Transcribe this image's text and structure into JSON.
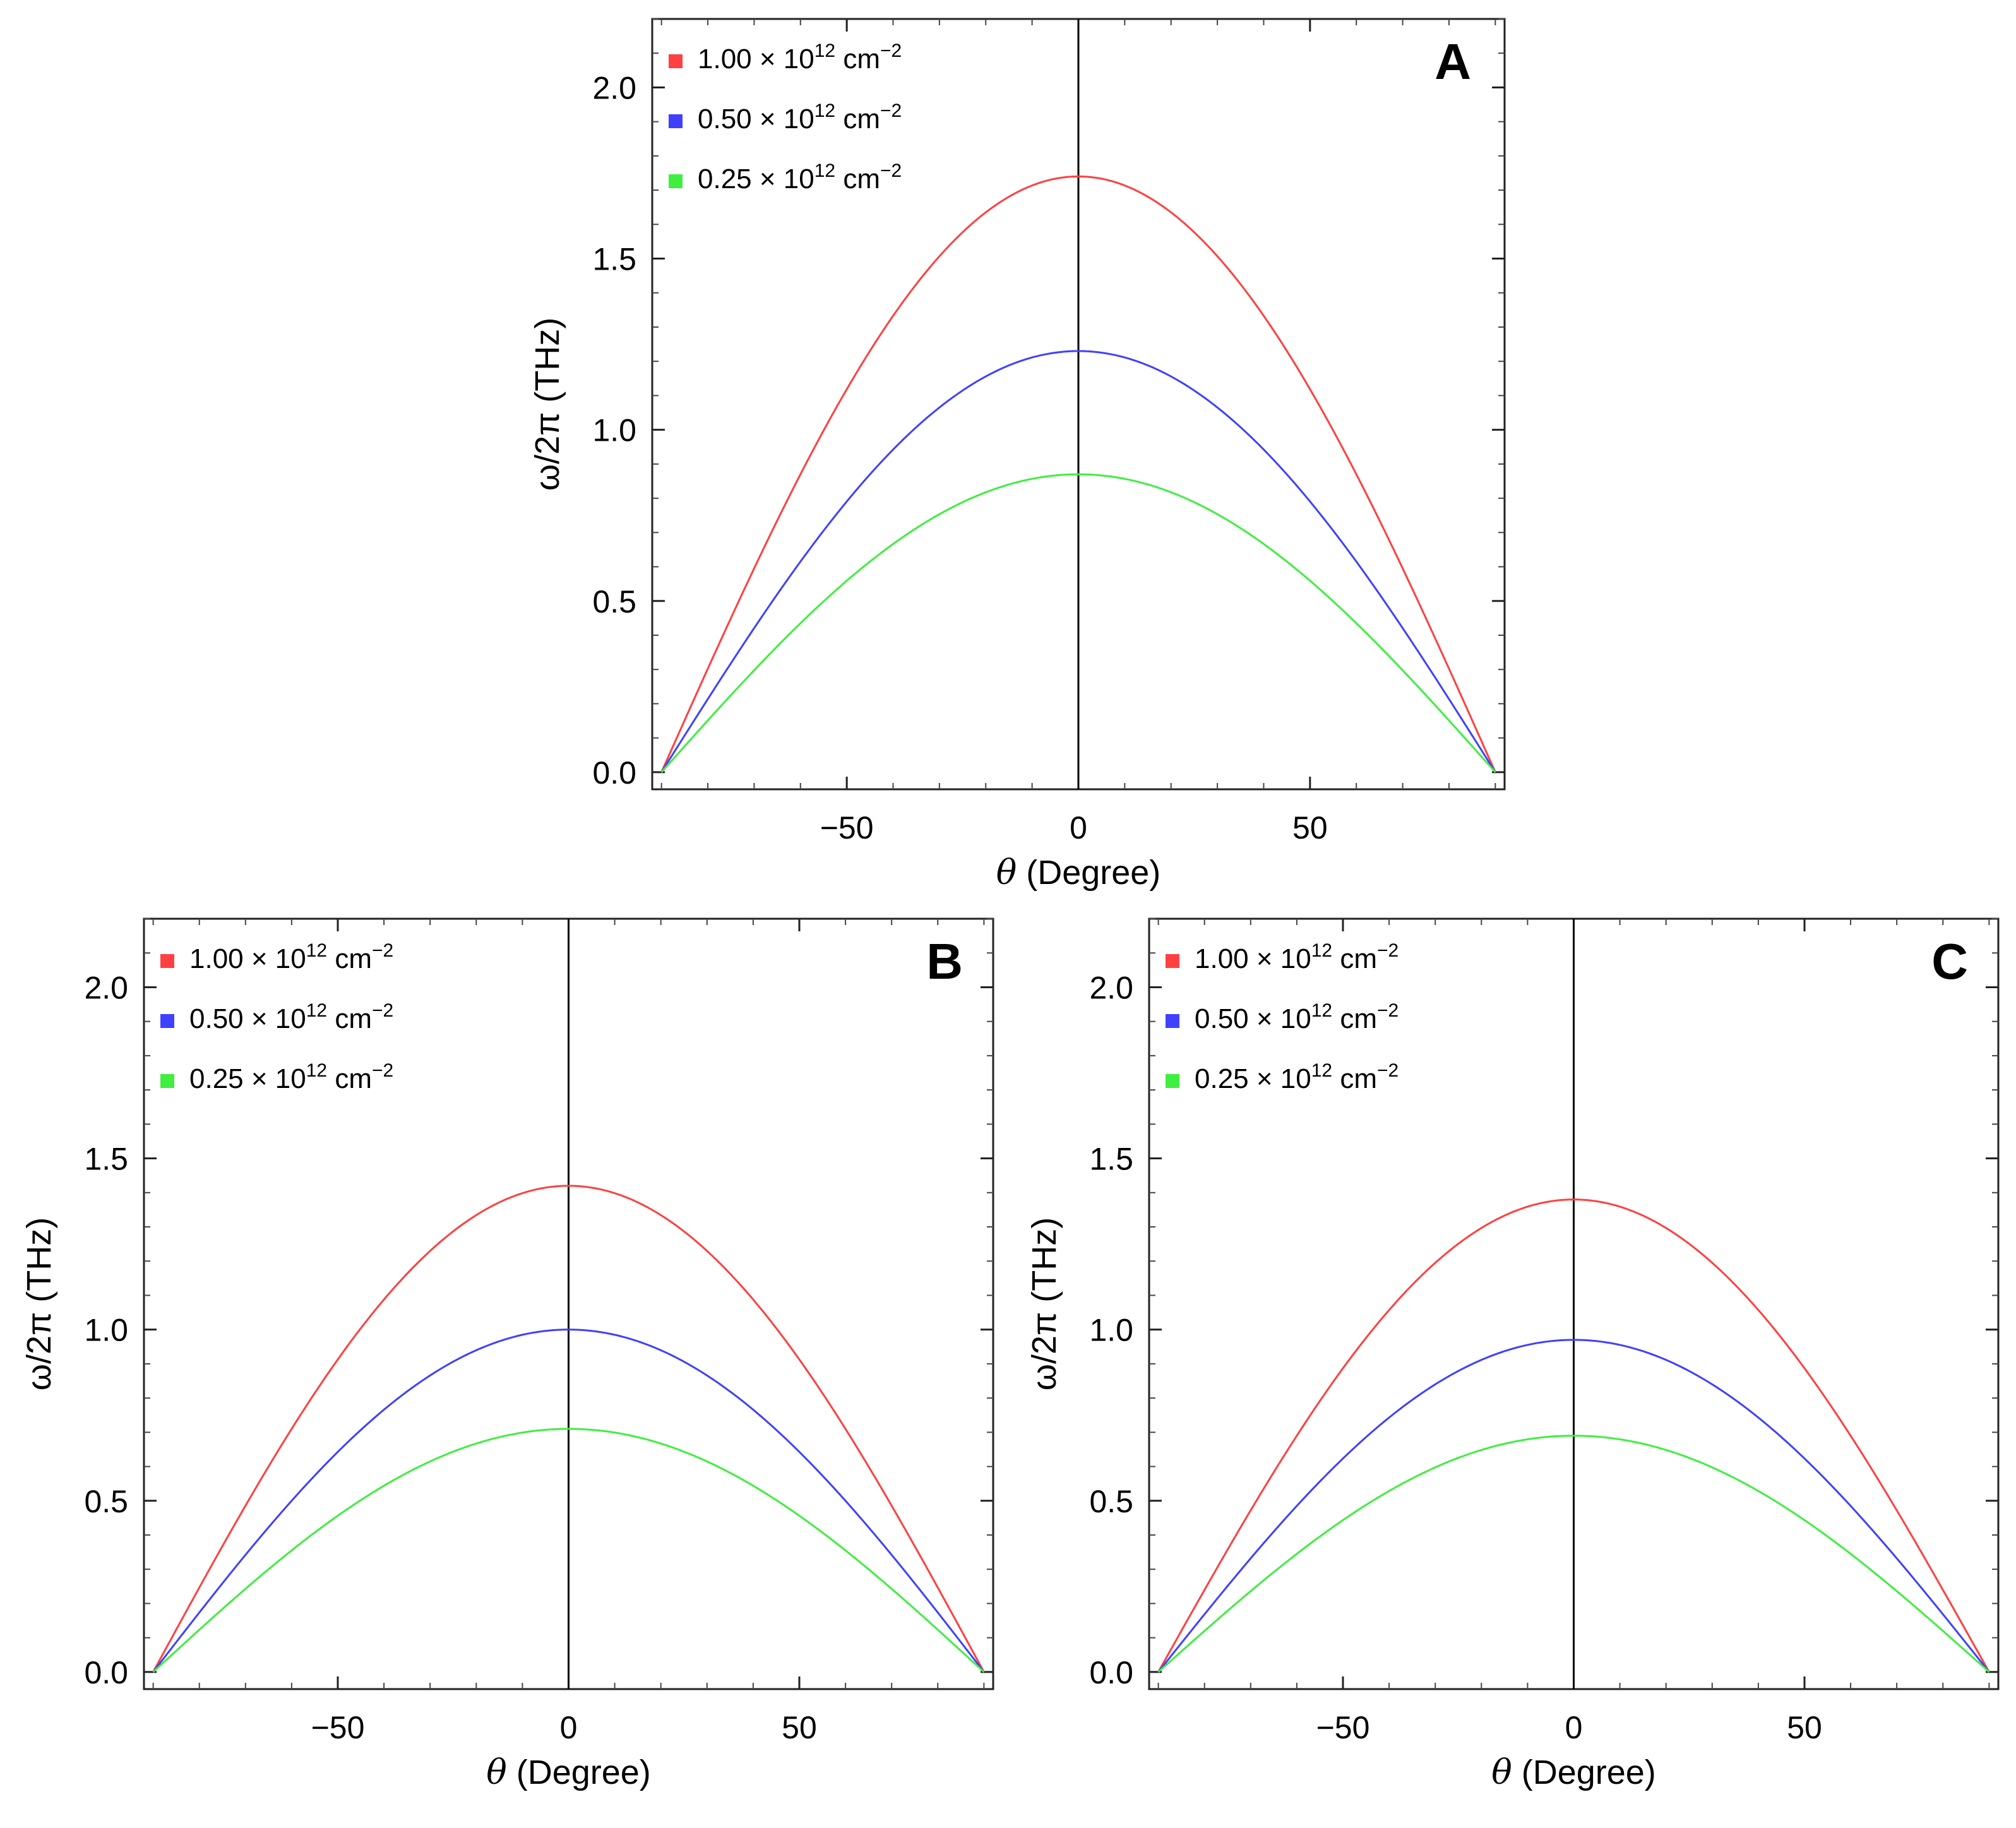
{
  "chart_data": [
    {
      "type": "line",
      "panel": "A",
      "xlabel_symbol": "θ",
      "xlabel": "(Degree)",
      "ylabel": "ω/2π (THz)",
      "xlim": [
        -92,
        92
      ],
      "ylim": [
        -0.05,
        2.2
      ],
      "xticks": [
        -50,
        0,
        50
      ],
      "xtick_labels": [
        "−50",
        "0",
        "50"
      ],
      "yticks": [
        0.0,
        0.5,
        1.0,
        1.5,
        2.0
      ],
      "ytick_labels": [
        "0.0",
        "0.5",
        "1.0",
        "1.5",
        "2.0"
      ],
      "series": [
        {
          "name": "1.00 × 10¹² cm⁻²",
          "mantissa": "1.00",
          "times": "×",
          "base": "10",
          "exp": "12",
          "unit": "cm",
          "unit_exp": "−2",
          "color": "#ff4040",
          "peak": 1.74
        },
        {
          "name": "0.50 × 10¹² cm⁻²",
          "mantissa": "0.50",
          "times": "×",
          "base": "10",
          "exp": "12",
          "unit": "cm",
          "unit_exp": "−2",
          "color": "#4040ff",
          "peak": 1.23
        },
        {
          "name": "0.25× 10¹² cm⁻²",
          "mantissa": "0.25",
          "times": "×",
          "base": "10",
          "exp": "12",
          "unit": "cm",
          "unit_exp": "−2",
          "color": "#40ee40",
          "peak": 0.87
        }
      ]
    },
    {
      "type": "line",
      "panel": "B",
      "xlabel_symbol": "θ",
      "xlabel": "(Degree)",
      "ylabel": "ω/2π (THz)",
      "xlim": [
        -92,
        92
      ],
      "ylim": [
        -0.05,
        2.2
      ],
      "xticks": [
        -50,
        0,
        50
      ],
      "xtick_labels": [
        "−50",
        "0",
        "50"
      ],
      "yticks": [
        0.0,
        0.5,
        1.0,
        1.5,
        2.0
      ],
      "ytick_labels": [
        "0.0",
        "0.5",
        "1.0",
        "1.5",
        "2.0"
      ],
      "series": [
        {
          "name": "1.00 × 10¹² cm⁻²",
          "mantissa": "1.00",
          "times": "×",
          "base": "10",
          "exp": "12",
          "unit": "cm",
          "unit_exp": "−2",
          "color": "#ff4040",
          "peak": 1.42
        },
        {
          "name": "0.50 × 10¹² cm⁻²",
          "mantissa": "0.50",
          "times": "×",
          "base": "10",
          "exp": "12",
          "unit": "cm",
          "unit_exp": "−2",
          "color": "#4040ff",
          "peak": 1.0
        },
        {
          "name": "0.25× 10¹² cm⁻²",
          "mantissa": "0.25",
          "times": "×",
          "base": "10",
          "exp": "12",
          "unit": "cm",
          "unit_exp": "−2",
          "color": "#40ee40",
          "peak": 0.71
        }
      ]
    },
    {
      "type": "line",
      "panel": "C",
      "xlabel_symbol": "θ",
      "xlabel": "(Degree)",
      "ylabel": "ω/2π (THz)",
      "xlim": [
        -92,
        92
      ],
      "ylim": [
        -0.05,
        2.2
      ],
      "xticks": [
        -50,
        0,
        50
      ],
      "xtick_labels": [
        "−50",
        "0",
        "50"
      ],
      "yticks": [
        0.0,
        0.5,
        1.0,
        1.5,
        2.0
      ],
      "ytick_labels": [
        "0.0",
        "0.5",
        "1.0",
        "1.5",
        "2.0"
      ],
      "series": [
        {
          "name": "1.00 × 10¹² cm⁻²",
          "mantissa": "1.00",
          "times": "×",
          "base": "10",
          "exp": "12",
          "unit": "cm",
          "unit_exp": "−2",
          "color": "#ff4040",
          "peak": 1.38
        },
        {
          "name": "0.50 × 10¹² cm⁻²",
          "mantissa": "0.50",
          "times": "×",
          "base": "10",
          "exp": "12",
          "unit": "cm",
          "unit_exp": "−2",
          "color": "#4040ff",
          "peak": 0.97
        },
        {
          "name": "0.25× 10¹² cm⁻²",
          "mantissa": "0.25",
          "times": "×",
          "base": "10",
          "exp": "12",
          "unit": "cm",
          "unit_exp": "−2",
          "color": "#40ee40",
          "peak": 0.69
        }
      ]
    }
  ]
}
